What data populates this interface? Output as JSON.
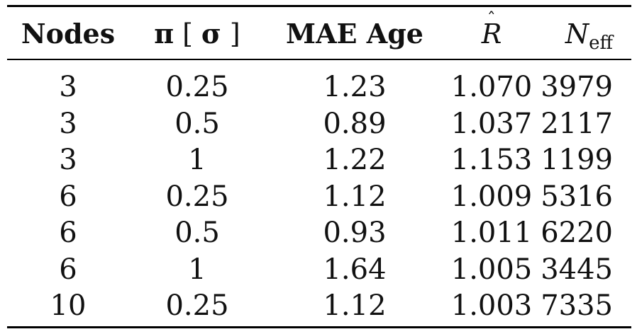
{
  "table": {
    "headers": {
      "nodes": "Nodes",
      "pi": "π",
      "bracket_open": "[",
      "sigma": "σ",
      "bracket_close": "]",
      "mae": "MAE Age",
      "rhat_letter": "R",
      "rhat_accent": "ˆ",
      "neff_letter": "N",
      "neff_sub": "eff"
    },
    "rows": [
      [
        "3",
        "0.25",
        "1.23",
        "1.070",
        "3979"
      ],
      [
        "3",
        "0.5",
        "0.89",
        "1.037",
        "2117"
      ],
      [
        "3",
        "1",
        "1.22",
        "1.153",
        "1199"
      ],
      [
        "6",
        "0.25",
        "1.12",
        "1.009",
        "5316"
      ],
      [
        "6",
        "0.5",
        "0.93",
        "1.011",
        "6220"
      ],
      [
        "6",
        "1",
        "1.64",
        "1.005",
        "3445"
      ],
      [
        "10",
        "0.25",
        "1.12",
        "1.003",
        "7335"
      ]
    ]
  }
}
